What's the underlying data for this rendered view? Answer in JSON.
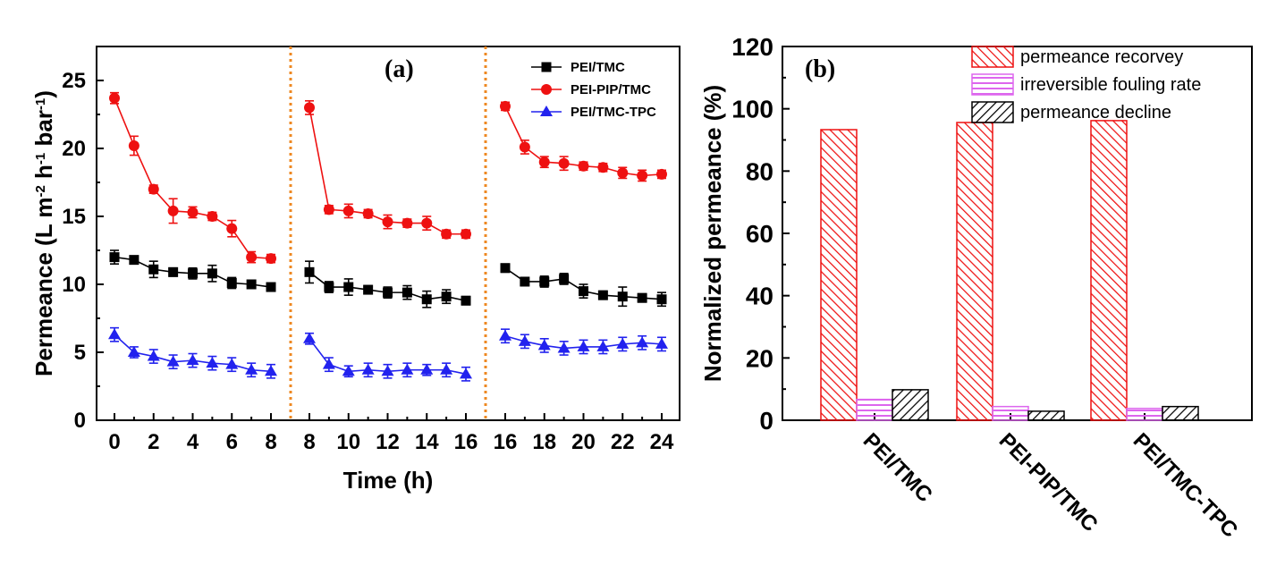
{
  "chart_data": [
    {
      "type": "line",
      "panel_label": "(a)",
      "xlabel": "Time (h)",
      "ylabel": "Permeance (L m-2 h-1 bar-1)",
      "ylabel_parts": [
        "Permeance (L m",
        "-2",
        " h",
        "-1",
        " bar",
        "-1",
        ")"
      ],
      "ylim": [
        0,
        27.5
      ],
      "yticks": [
        0,
        5,
        10,
        15,
        20,
        25
      ],
      "segments": [
        {
          "ticks": [
            "0",
            "2",
            "4",
            "6",
            "8"
          ]
        },
        {
          "ticks": [
            "8",
            "10",
            "12",
            "14",
            "16"
          ]
        },
        {
          "ticks": [
            "16",
            "18",
            "20",
            "22",
            "24"
          ]
        }
      ],
      "legend_position": "top-right",
      "series": [
        {
          "name": "PEI/TMC",
          "color": "#000000",
          "marker": "square",
          "x": [
            [
              0,
              1,
              2,
              3,
              4,
              5,
              6,
              7,
              8
            ],
            [
              8,
              9,
              10,
              11,
              12,
              13,
              14,
              15,
              16
            ],
            [
              16,
              17,
              18,
              19,
              20,
              21,
              22,
              23,
              24
            ]
          ],
          "y": [
            [
              12.0,
              11.8,
              11.1,
              10.9,
              10.8,
              10.8,
              10.1,
              10.0,
              9.8
            ],
            [
              10.9,
              9.8,
              9.8,
              9.6,
              9.4,
              9.4,
              8.9,
              9.1,
              8.8
            ],
            [
              11.2,
              10.2,
              10.2,
              10.4,
              9.5,
              9.2,
              9.1,
              9.0,
              8.9
            ]
          ],
          "err": [
            [
              0.5,
              0.2,
              0.6,
              0.3,
              0.4,
              0.6,
              0.4,
              0.3,
              0.2
            ],
            [
              0.8,
              0.4,
              0.6,
              0.3,
              0.4,
              0.5,
              0.6,
              0.5,
              0.3
            ],
            [
              0.3,
              0.3,
              0.4,
              0.4,
              0.5,
              0.3,
              0.7,
              0.3,
              0.5
            ]
          ]
        },
        {
          "name": "PEI-PIP/TMC",
          "color": "#ee1111",
          "marker": "circle",
          "x": [
            [
              0,
              1,
              2,
              3,
              4,
              5,
              6,
              7,
              8
            ],
            [
              8,
              9,
              10,
              11,
              12,
              13,
              14,
              15,
              16
            ],
            [
              16,
              17,
              18,
              19,
              20,
              21,
              22,
              23,
              24
            ]
          ],
          "y": [
            [
              23.7,
              20.2,
              17.0,
              15.4,
              15.3,
              15.0,
              14.1,
              12.0,
              11.9
            ],
            [
              23.0,
              15.5,
              15.4,
              15.2,
              14.6,
              14.5,
              14.5,
              13.7,
              13.7
            ],
            [
              23.1,
              20.1,
              19.0,
              18.9,
              18.7,
              18.6,
              18.2,
              18.0,
              18.1
            ]
          ],
          "err": [
            [
              0.4,
              0.7,
              0.3,
              0.9,
              0.4,
              0.3,
              0.6,
              0.4,
              0.3
            ],
            [
              0.5,
              0.3,
              0.5,
              0.3,
              0.5,
              0.3,
              0.5,
              0.3,
              0.3
            ],
            [
              0.3,
              0.5,
              0.4,
              0.5,
              0.3,
              0.3,
              0.4,
              0.4,
              0.3
            ]
          ]
        },
        {
          "name": "PEI/TMC-TPC",
          "color": "#2222ee",
          "marker": "triangle",
          "x": [
            [
              0,
              1,
              2,
              3,
              4,
              5,
              6,
              7,
              8
            ],
            [
              8,
              9,
              10,
              11,
              12,
              13,
              14,
              15,
              16
            ],
            [
              16,
              17,
              18,
              19,
              20,
              21,
              22,
              23,
              24
            ]
          ],
          "y": [
            [
              6.3,
              5.0,
              4.7,
              4.3,
              4.4,
              4.2,
              4.1,
              3.7,
              3.6
            ],
            [
              6.0,
              4.1,
              3.6,
              3.7,
              3.6,
              3.7,
              3.7,
              3.7,
              3.4
            ],
            [
              6.2,
              5.8,
              5.5,
              5.3,
              5.4,
              5.4,
              5.6,
              5.7,
              5.6
            ]
          ],
          "err": [
            [
              0.5,
              0.4,
              0.5,
              0.5,
              0.5,
              0.5,
              0.5,
              0.5,
              0.5
            ],
            [
              0.4,
              0.5,
              0.4,
              0.5,
              0.5,
              0.5,
              0.4,
              0.5,
              0.5
            ],
            [
              0.5,
              0.5,
              0.5,
              0.5,
              0.5,
              0.5,
              0.5,
              0.5,
              0.5
            ]
          ]
        }
      ]
    },
    {
      "type": "bar",
      "panel_label": "(b)",
      "ylabel": "Normalized permeance (%)",
      "xlabel": "",
      "ylim": [
        0,
        120
      ],
      "yticks": [
        0,
        20,
        40,
        60,
        80,
        100,
        120
      ],
      "categories": [
        "PEI/TMC",
        "PEI-PIP/TMC",
        "PEI/TMC-TPC"
      ],
      "legend_position": "top-right",
      "series": [
        {
          "name": "permeance recorvey",
          "color": "#ee1111",
          "pattern": "diagonal",
          "values": [
            93.3,
            95.6,
            96.2
          ]
        },
        {
          "name": "irreversible fouling rate",
          "color": "#dd66ee",
          "pattern": "horizontal",
          "values": [
            6.7,
            4.4,
            3.8
          ]
        },
        {
          "name": "permeance decline",
          "color": "#000000",
          "pattern": "diagonal-reverse",
          "values": [
            9.8,
            2.9,
            4.4
          ]
        }
      ]
    }
  ]
}
